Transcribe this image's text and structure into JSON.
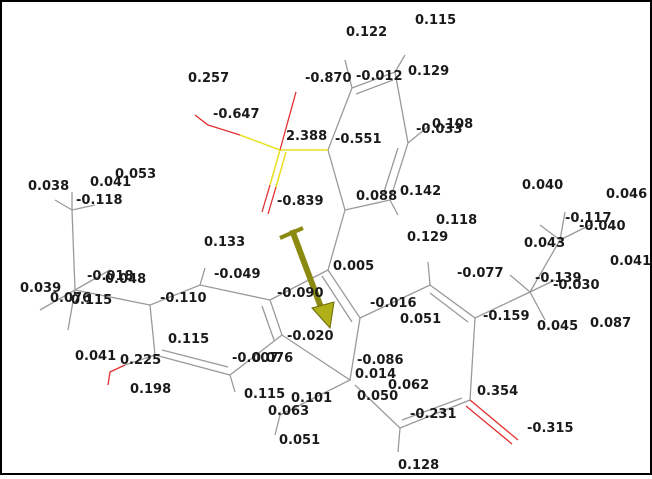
{
  "labels": [
    "0.115",
    "0.122",
    "0.129",
    "-0.870",
    "-0.012",
    "0.257",
    "-0.647",
    "2.388",
    "-0.551",
    "-0.033",
    "0.108",
    "0.053",
    "0.038",
    "0.041",
    "-0.118",
    "-0.839",
    "0.088",
    "0.142",
    "0.040",
    "0.046",
    "-0.117",
    "-0.040",
    "0.118",
    "0.129",
    "0.133",
    "0.043",
    "0.005",
    "-0.049",
    "-0.077",
    "-0.018",
    "0.048",
    "0.039",
    "0.076",
    "0.115",
    "-0.110",
    "-0.090",
    "-0.016",
    "-0.139",
    "-0.030",
    "0.041",
    "0.051",
    "-0.159",
    "0.045",
    "0.087",
    "-0.020",
    "0.115",
    "-0.086",
    "-0.007",
    "0.076",
    "0.014",
    "0.041",
    "0.225",
    "0.062",
    "0.198",
    "0.115",
    "0.101",
    "0.050",
    "0.354",
    "0.063",
    "-0.231",
    "-0.315",
    "0.051",
    "0.128"
  ]
}
